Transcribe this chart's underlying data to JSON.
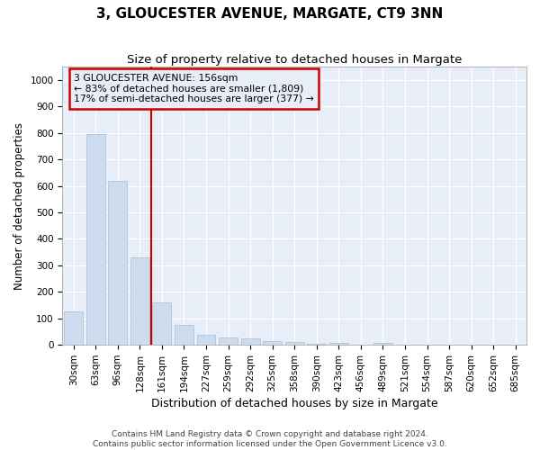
{
  "title": "3, GLOUCESTER AVENUE, MARGATE, CT9 3NN",
  "subtitle": "Size of property relative to detached houses in Margate",
  "xlabel": "Distribution of detached houses by size in Margate",
  "ylabel": "Number of detached properties",
  "categories": [
    "30sqm",
    "63sqm",
    "96sqm",
    "128sqm",
    "161sqm",
    "194sqm",
    "227sqm",
    "259sqm",
    "292sqm",
    "325sqm",
    "358sqm",
    "390sqm",
    "423sqm",
    "456sqm",
    "489sqm",
    "521sqm",
    "554sqm",
    "587sqm",
    "620sqm",
    "652sqm",
    "685sqm"
  ],
  "values": [
    125,
    795,
    620,
    330,
    160,
    75,
    38,
    28,
    25,
    15,
    10,
    5,
    8,
    0,
    8,
    0,
    0,
    0,
    0,
    0,
    0
  ],
  "bar_color": "#ccdcee",
  "bar_edge_color": "#aabbd0",
  "vline_color": "#cc0000",
  "annotation_title": "3 GLOUCESTER AVENUE: 156sqm",
  "annotation_line1": "← 83% of detached houses are smaller (1,809)",
  "annotation_line2": "17% of semi-detached houses are larger (377) →",
  "annotation_box_color": "#cc0000",
  "footer_line1": "Contains HM Land Registry data © Crown copyright and database right 2024.",
  "footer_line2": "Contains public sector information licensed under the Open Government Licence v3.0.",
  "ylim": [
    0,
    1050
  ],
  "yticks": [
    0,
    100,
    200,
    300,
    400,
    500,
    600,
    700,
    800,
    900,
    1000
  ],
  "background_color": "#ffffff",
  "plot_bg_color": "#e8eef8",
  "grid_color": "#ffffff",
  "title_fontsize": 11,
  "subtitle_fontsize": 9.5,
  "xlabel_fontsize": 9,
  "ylabel_fontsize": 8.5,
  "tick_fontsize": 7.5,
  "footer_fontsize": 6.5
}
